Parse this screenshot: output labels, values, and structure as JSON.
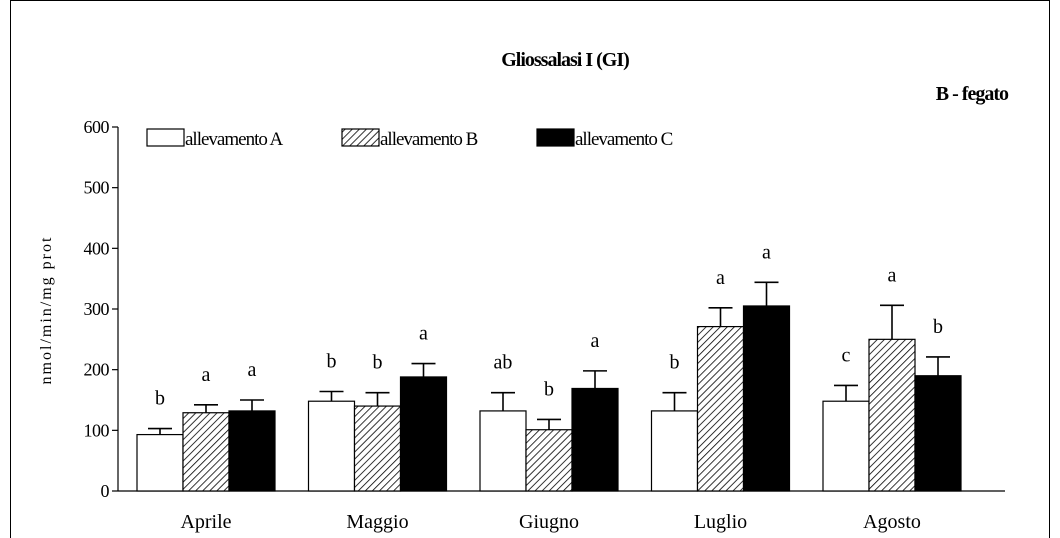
{
  "chart_data": {
    "type": "bar",
    "title": "Gliossalasi I (GI)",
    "subtitle": "B - fegato",
    "ylabel": "nmol/min/mg prot",
    "xlabel": "",
    "ylim": [
      0,
      600
    ],
    "yticks": [
      0,
      100,
      200,
      300,
      400,
      500,
      600
    ],
    "categories": [
      "Aprile",
      "Maggio",
      "Giugno",
      "Luglio",
      "Agosto"
    ],
    "legend_position": "top-left",
    "grid": false,
    "series": [
      {
        "name": "allevamento A",
        "fill": "white",
        "values": [
          93,
          148,
          132,
          132,
          148
        ],
        "errors": [
          10,
          16,
          30,
          30,
          26
        ],
        "letters": [
          "b",
          "b",
          "ab",
          "b",
          "c"
        ]
      },
      {
        "name": "allevamento B",
        "fill": "hatched",
        "values": [
          129,
          140,
          101,
          271,
          250
        ],
        "errors": [
          13,
          22,
          17,
          31,
          56
        ],
        "letters": [
          "a",
          "b",
          "b",
          "a",
          "a"
        ]
      },
      {
        "name": "allevamento C",
        "fill": "black",
        "values": [
          132,
          188,
          169,
          305,
          190
        ],
        "errors": [
          18,
          22,
          29,
          39,
          31
        ],
        "letters": [
          "a",
          "a",
          "a",
          "a",
          "b"
        ]
      }
    ]
  }
}
